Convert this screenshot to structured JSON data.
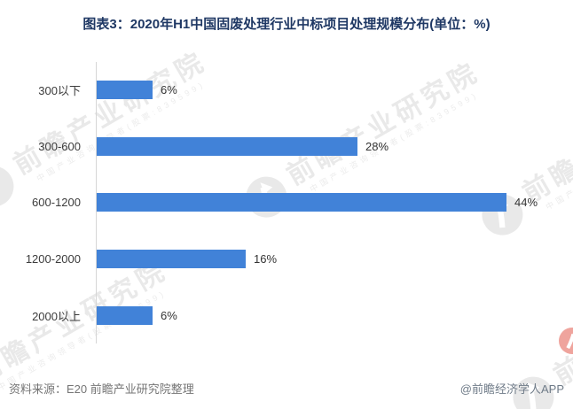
{
  "title": "图表3：2020年H1中国固废处理行业中标项目处理规模分布(单位：%)",
  "chart_data": {
    "type": "bar",
    "orientation": "horizontal",
    "title": "2020年H1中国固废处理行业中标项目处理规模分布",
    "unit": "%",
    "categories": [
      "300以下",
      "300-600",
      "600-1200",
      "1200-2000",
      "2000以上"
    ],
    "values": [
      6,
      28,
      44,
      16,
      6
    ],
    "xlim": [
      0,
      50
    ],
    "grid": false,
    "legend": "none",
    "value_label_format": "{value}%"
  },
  "watermark": {
    "text": "前瞻产业研究院",
    "subtext": "中国产业咨询领导者(股票:839599)"
  },
  "footer": {
    "source": "资料来源：E20 前瞻产业研究院整理",
    "credit": "@前瞻经济学人APP"
  },
  "colors": {
    "bar": "#4182d8",
    "title_text": "#1f3864",
    "axis_line": "#d6d6d6",
    "label_text": "#3c3c3c",
    "footer_text": "#757575",
    "watermark_gray": "#e9e9e9",
    "watermark_red": "#e25a4e"
  }
}
